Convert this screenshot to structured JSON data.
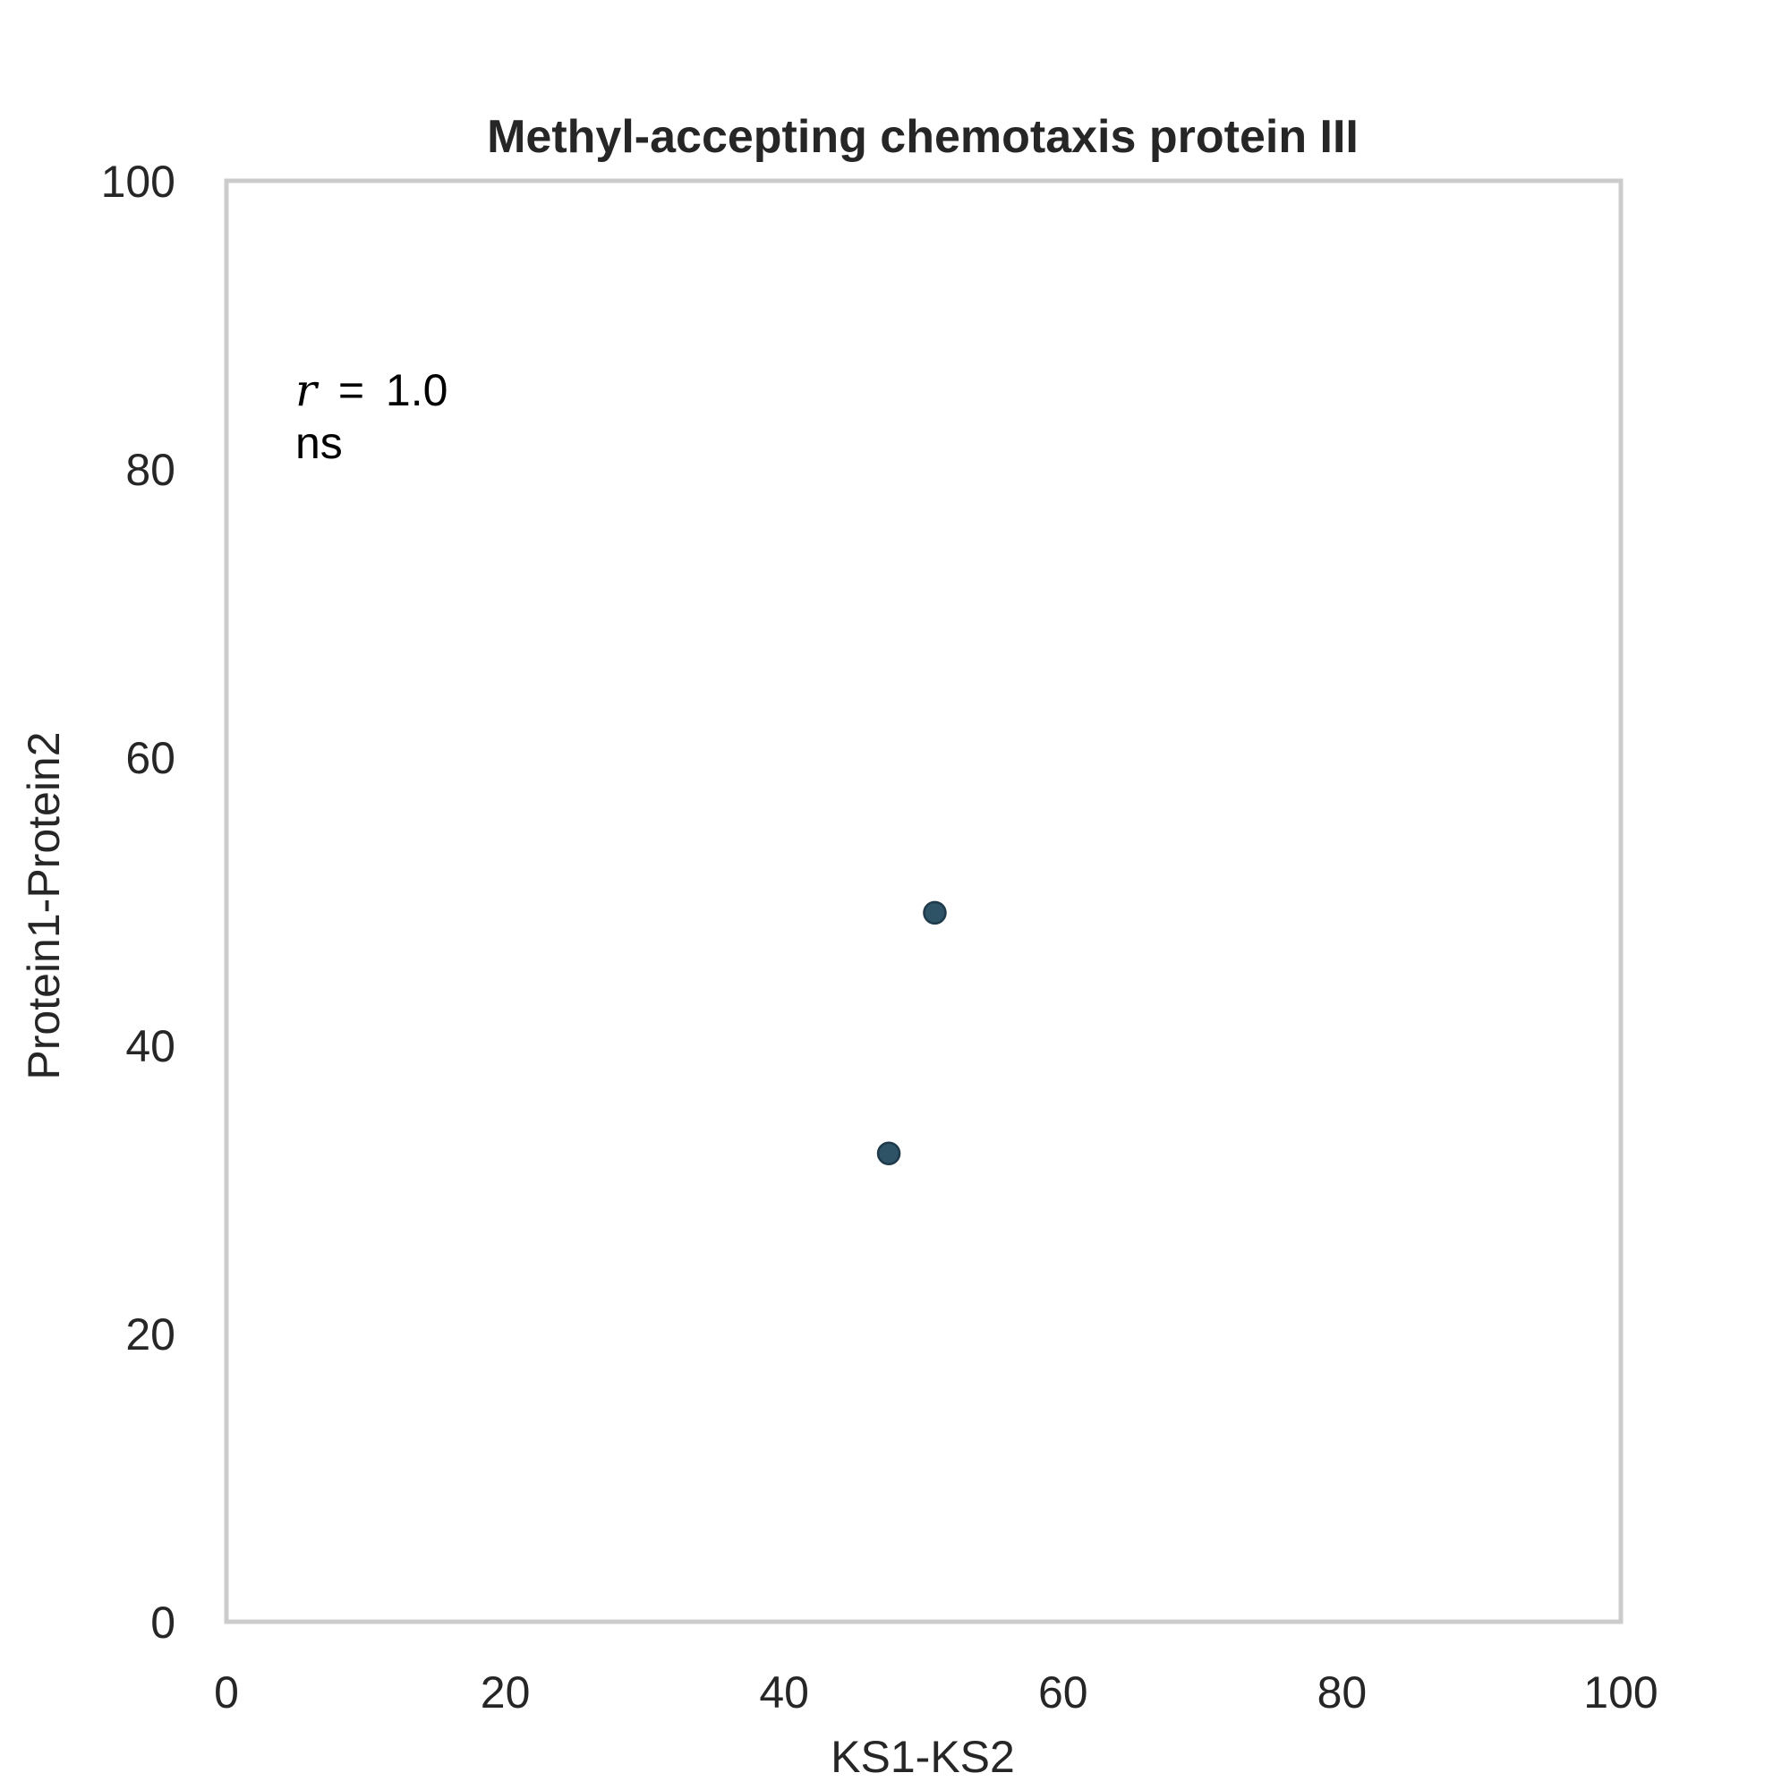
{
  "chart_data": {
    "type": "scatter",
    "title": "Methyl-accepting chemotaxis protein III",
    "xlabel": "KS1-KS2",
    "ylabel": "Protein1-Protein2",
    "xlim": [
      0,
      100
    ],
    "ylim": [
      0,
      100
    ],
    "xticks": [
      "0",
      "20",
      "40",
      "60",
      "80",
      "100"
    ],
    "yticks": [
      "0",
      "20",
      "40",
      "60",
      "80",
      "100"
    ],
    "points": [
      {
        "x": 47.5,
        "y": 32.5
      },
      {
        "x": 50.8,
        "y": 49.2
      }
    ],
    "annotation": {
      "r_symbol": "r",
      "r_equals": "=",
      "r_value": "1.0",
      "significance": "ns"
    },
    "grid": false,
    "legend": "none",
    "colors": {
      "marker": "#2e5266",
      "marker_edge": "#1f3a4a",
      "frame": "#cccccc",
      "text": "#262626"
    }
  }
}
